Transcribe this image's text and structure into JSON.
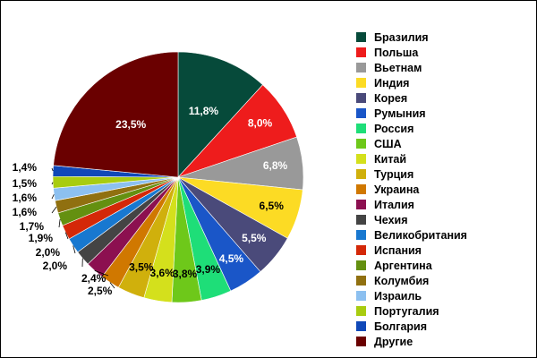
{
  "chart_data": {
    "type": "pie",
    "title": "",
    "legend_position": "right",
    "start_angle_deg": 0,
    "direction": "clockwise",
    "slices": [
      {
        "name": "Бразилия",
        "value": 11.8,
        "label": "11,8%",
        "color": "#064a3a",
        "label_color": "#ffffff"
      },
      {
        "name": "Польша",
        "value": 8.0,
        "label": "8,0%",
        "color": "#ee1c1c",
        "label_color": "#ffffff"
      },
      {
        "name": "Вьетнам",
        "value": 6.8,
        "label": "6,8%",
        "color": "#999999",
        "label_color": "#ffffff"
      },
      {
        "name": "Индия",
        "value": 6.5,
        "label": "6,5%",
        "color": "#fcdb24",
        "label_color": "#000000"
      },
      {
        "name": "Корея",
        "value": 5.5,
        "label": "5,5%",
        "color": "#4a4a7a",
        "label_color": "#ffffff"
      },
      {
        "name": "Румыния",
        "value": 4.5,
        "label": "4,5%",
        "color": "#1a56c8",
        "label_color": "#ffffff"
      },
      {
        "name": "Россия",
        "value": 3.9,
        "label": "3,9%",
        "color": "#1ede78",
        "label_color": "#000000"
      },
      {
        "name": "США",
        "value": 3.8,
        "label": "3,8%",
        "color": "#6ec81a",
        "label_color": "#000000"
      },
      {
        "name": "Китай",
        "value": 3.6,
        "label": "3,6%",
        "color": "#d4e01c",
        "label_color": "#000000"
      },
      {
        "name": "Турция",
        "value": 3.5,
        "label": "3,5%",
        "color": "#d0b00c",
        "label_color": "#000000"
      },
      {
        "name": "Украина",
        "value": 2.5,
        "label": "2,5%",
        "color": "#d07800",
        "label_color": "#000000"
      },
      {
        "name": "Италия",
        "value": 2.4,
        "label": "2,4%",
        "color": "#8c1050",
        "label_color": "#000000"
      },
      {
        "name": "Чехия",
        "value": 2.0,
        "label": "2,0%",
        "color": "#444444",
        "label_color": "#000000"
      },
      {
        "name": "Великобритания",
        "value": 2.0,
        "label": "2,0%",
        "color": "#1878d0",
        "label_color": "#000000"
      },
      {
        "name": "Испания",
        "value": 1.9,
        "label": "1,9%",
        "color": "#d42808",
        "label_color": "#000000"
      },
      {
        "name": "Аргентина",
        "value": 1.7,
        "label": "1,7%",
        "color": "#649010",
        "label_color": "#000000"
      },
      {
        "name": "Колумбия",
        "value": 1.6,
        "label": "1,6%",
        "color": "#907010",
        "label_color": "#000000"
      },
      {
        "name": "Израиль",
        "value": 1.6,
        "label": "1,6%",
        "color": "#8cc0f0",
        "label_color": "#000000"
      },
      {
        "name": "Португалия",
        "value": 1.5,
        "label": "1,5%",
        "color": "#a8cc10",
        "label_color": "#000000"
      },
      {
        "name": "Болгария",
        "value": 1.4,
        "label": "1,4%",
        "color": "#1048b8",
        "label_color": "#000000"
      },
      {
        "name": "Другие",
        "value": 23.5,
        "label": "23,5%",
        "color": "#6a0000",
        "label_color": "#ffffff"
      }
    ]
  }
}
